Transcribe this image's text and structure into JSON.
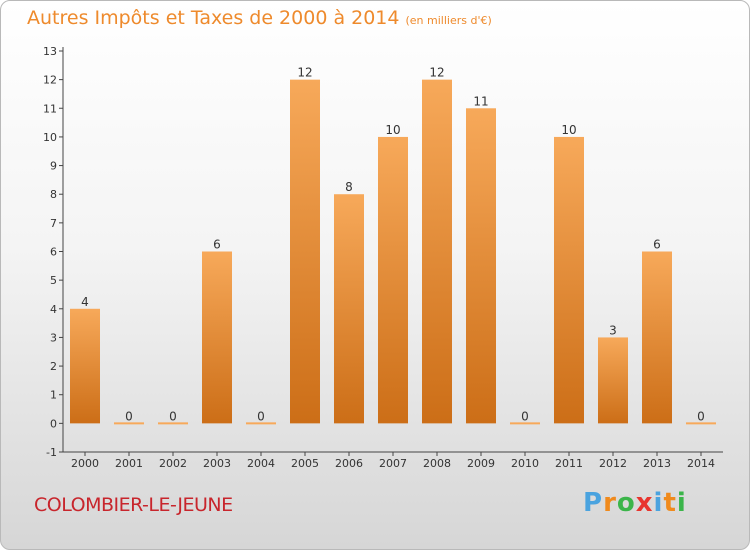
{
  "title": "Autres Impôts et Taxes de 2000 à 2014",
  "unit": "(en milliers d'€)",
  "commune": "COLOMBIER-LE-JEUNE",
  "logo": {
    "text": "Proxiti",
    "letters": [
      "P",
      "r",
      "o",
      "x",
      "i",
      "t",
      "i"
    ],
    "colors": [
      "#4aa3df",
      "#f08a1c",
      "#3bb54a",
      "#e8352e",
      "#4aa3df",
      "#f08a1c",
      "#3bb54a"
    ]
  },
  "colors": {
    "bar_top": "#f7a95a",
    "bar_bottom": "#cc6e17",
    "title": "#ee8a2c",
    "commune": "#c8252c"
  },
  "chart_data": {
    "type": "bar",
    "categories": [
      "2000",
      "2001",
      "2002",
      "2003",
      "2004",
      "2005",
      "2006",
      "2007",
      "2008",
      "2009",
      "2010",
      "2011",
      "2012",
      "2013",
      "2014"
    ],
    "values": [
      4,
      0,
      0,
      6,
      0,
      12,
      8,
      10,
      12,
      11,
      0,
      10,
      3,
      6,
      0
    ],
    "ylim": [
      -1,
      13
    ],
    "yticks": [
      -1,
      0,
      1,
      2,
      3,
      4,
      5,
      6,
      7,
      8,
      9,
      10,
      11,
      12,
      13
    ],
    "grid": false,
    "legend": "none"
  }
}
